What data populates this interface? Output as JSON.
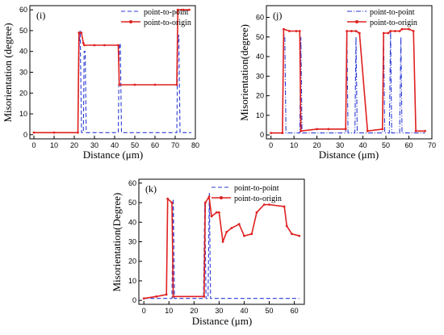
{
  "chart_data": [
    {
      "type": "line",
      "panel_label": "(i)",
      "xlabel": "Distance (μm)",
      "ylabel": "Misorientation (degree)",
      "xlim": [
        -2,
        80
      ],
      "ylim": [
        -2,
        62
      ],
      "xticks": [
        0,
        10,
        20,
        30,
        40,
        50,
        60,
        70,
        80
      ],
      "yticks": [
        0,
        10,
        20,
        30,
        40,
        50,
        60
      ],
      "legend_position": "top-right",
      "series": [
        {
          "name": "point-to-point",
          "color": "#2b3bd6",
          "style": "dashed",
          "x": [
            0,
            10,
            21.8,
            22.4,
            22.9,
            23.6,
            24.5,
            24.9,
            25.4,
            25.9,
            34,
            41.8,
            42.3,
            42.8,
            43.4,
            55,
            70.8,
            71.3,
            71.8,
            72.4,
            78
          ],
          "y": [
            1,
            1,
            1,
            42,
            50,
            1,
            1,
            40,
            40,
            1,
            1,
            1,
            42,
            44,
            1,
            1,
            1,
            45,
            48,
            1,
            1
          ]
        },
        {
          "name": "point-to-origin",
          "color": "#e02020",
          "style": "solid-marker",
          "x": [
            0,
            10,
            21.8,
            22.3,
            23.5,
            24.5,
            25,
            30,
            35,
            41.8,
            42.3,
            50,
            60,
            70.8,
            71.3,
            74,
            77
          ],
          "y": [
            1,
            1,
            1,
            49,
            49,
            44,
            43,
            43,
            43,
            43,
            24,
            24,
            24,
            24,
            60,
            60,
            60
          ]
        }
      ]
    },
    {
      "type": "line",
      "panel_label": "(j)",
      "xlabel": "Distance (μm)",
      "ylabel": "Misorientation(degree)",
      "xlim": [
        -2,
        70
      ],
      "ylim": [
        -2,
        66
      ],
      "xticks": [
        0,
        10,
        20,
        30,
        40,
        50,
        60,
        70
      ],
      "yticks": [
        0,
        10,
        20,
        30,
        40,
        50,
        60
      ],
      "legend_position": "top-right",
      "series": [
        {
          "name": "point-to-point",
          "color": "#2b3bd6",
          "style": "dash-dot",
          "x": [
            0,
            5,
            5.5,
            6,
            6.5,
            12.5,
            13,
            13.5,
            20,
            32.5,
            33,
            33.5,
            36.5,
            37,
            37.5,
            48.5,
            49,
            49.5,
            51.5,
            52,
            52.5,
            56,
            56.5,
            57,
            67
          ],
          "y": [
            1,
            1,
            52,
            50,
            1,
            1,
            50,
            1,
            1,
            1,
            52,
            1,
            1,
            50,
            1,
            1,
            51,
            1,
            1,
            53,
            1,
            1,
            50,
            1,
            1
          ]
        },
        {
          "name": "point-to-origin",
          "color": "#e02020",
          "style": "solid-marker",
          "x": [
            0,
            5,
            5.5,
            8,
            11,
            12.5,
            13,
            20,
            25,
            32.5,
            33,
            35,
            37,
            38.5,
            42,
            48.5,
            49,
            51,
            52,
            54,
            56,
            57,
            60,
            62,
            63,
            67
          ],
          "y": [
            1,
            1,
            54,
            53,
            53,
            53,
            2,
            3,
            3,
            3,
            53,
            53,
            53,
            52,
            2,
            3,
            52,
            52,
            53,
            53,
            53,
            54,
            54,
            53,
            2,
            2
          ]
        }
      ]
    },
    {
      "type": "line",
      "panel_label": "(k)",
      "xlabel": "Distance (μm)",
      "ylabel": "Misorientation(Degree)",
      "xlim": [
        -2,
        64
      ],
      "ylim": [
        -2,
        62
      ],
      "xticks": [
        0,
        10,
        20,
        30,
        40,
        50,
        60
      ],
      "yticks": [
        0,
        10,
        20,
        30,
        40,
        50,
        60
      ],
      "legend_position": "top-right",
      "series": [
        {
          "name": "point-to-point",
          "color": "#2b3bd6",
          "style": "dashed",
          "x": [
            0,
            9,
            11.2,
            11.7,
            12.2,
            20,
            23.8,
            24.3,
            24.8,
            25.6,
            26.1,
            26.6,
            35,
            47,
            56,
            62
          ],
          "y": [
            1,
            1,
            1,
            52,
            1,
            1,
            1,
            50,
            1,
            1,
            55,
            1,
            1,
            1,
            1,
            1
          ]
        },
        {
          "name": "point-to-origin",
          "color": "#e02020",
          "style": "solid-marker",
          "x": [
            0,
            5,
            9,
            9.5,
            11.2,
            11.7,
            24,
            24.5,
            26,
            27,
            29,
            30,
            31.5,
            33,
            35,
            38,
            40,
            43,
            45,
            48,
            50,
            56,
            57,
            59,
            62
          ],
          "y": [
            1,
            2,
            3,
            52,
            50,
            2,
            2,
            50,
            53,
            43,
            45,
            45,
            30,
            35,
            37,
            39,
            33,
            34,
            45,
            49,
            49,
            48,
            38,
            34,
            33
          ]
        }
      ]
    }
  ]
}
